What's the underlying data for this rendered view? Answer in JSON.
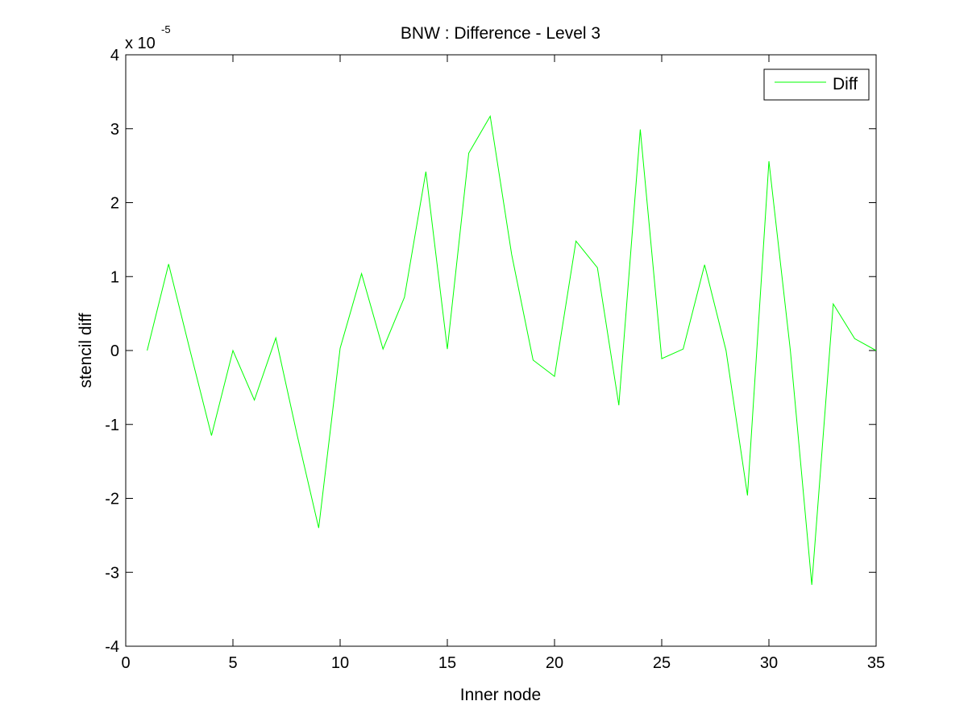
{
  "chart_data": {
    "type": "line",
    "title": "BNW : Difference - Level 3",
    "xlabel": "Inner node",
    "ylabel": "stencil diff",
    "xlim": [
      0,
      35
    ],
    "ylim": [
      -4,
      4
    ],
    "y_multiplier_base": "x 10",
    "y_multiplier_exp": "-5",
    "xticks": [
      "0",
      "5",
      "10",
      "15",
      "20",
      "25",
      "30",
      "35"
    ],
    "yticks": [
      "-4",
      "-3",
      "-2",
      "-1",
      "0",
      "1",
      "2",
      "3",
      "4"
    ],
    "grid": false,
    "legend_position": "top-right",
    "line_color": "#00ff00",
    "series": [
      {
        "name": "Diff",
        "x": [
          1,
          2,
          3,
          4,
          5,
          6,
          7,
          8,
          9,
          10,
          11,
          12,
          13,
          14,
          15,
          16,
          17,
          18,
          19,
          20,
          21,
          22,
          23,
          24,
          25,
          26,
          27,
          28,
          29,
          30,
          31,
          32,
          33,
          34,
          35
        ],
        "values": [
          0,
          1.17,
          0,
          -1.15,
          0,
          -0.67,
          0.17,
          -1.15,
          -2.4,
          0.03,
          1.04,
          0.02,
          0.72,
          2.42,
          0.02,
          2.67,
          3.17,
          1.3,
          -0.13,
          -0.35,
          1.48,
          1.12,
          -0.74,
          2.99,
          -0.11,
          0.02,
          1.16,
          0,
          -1.96,
          2.56,
          0,
          -3.17,
          0.63,
          0.16,
          0
        ]
      }
    ]
  }
}
